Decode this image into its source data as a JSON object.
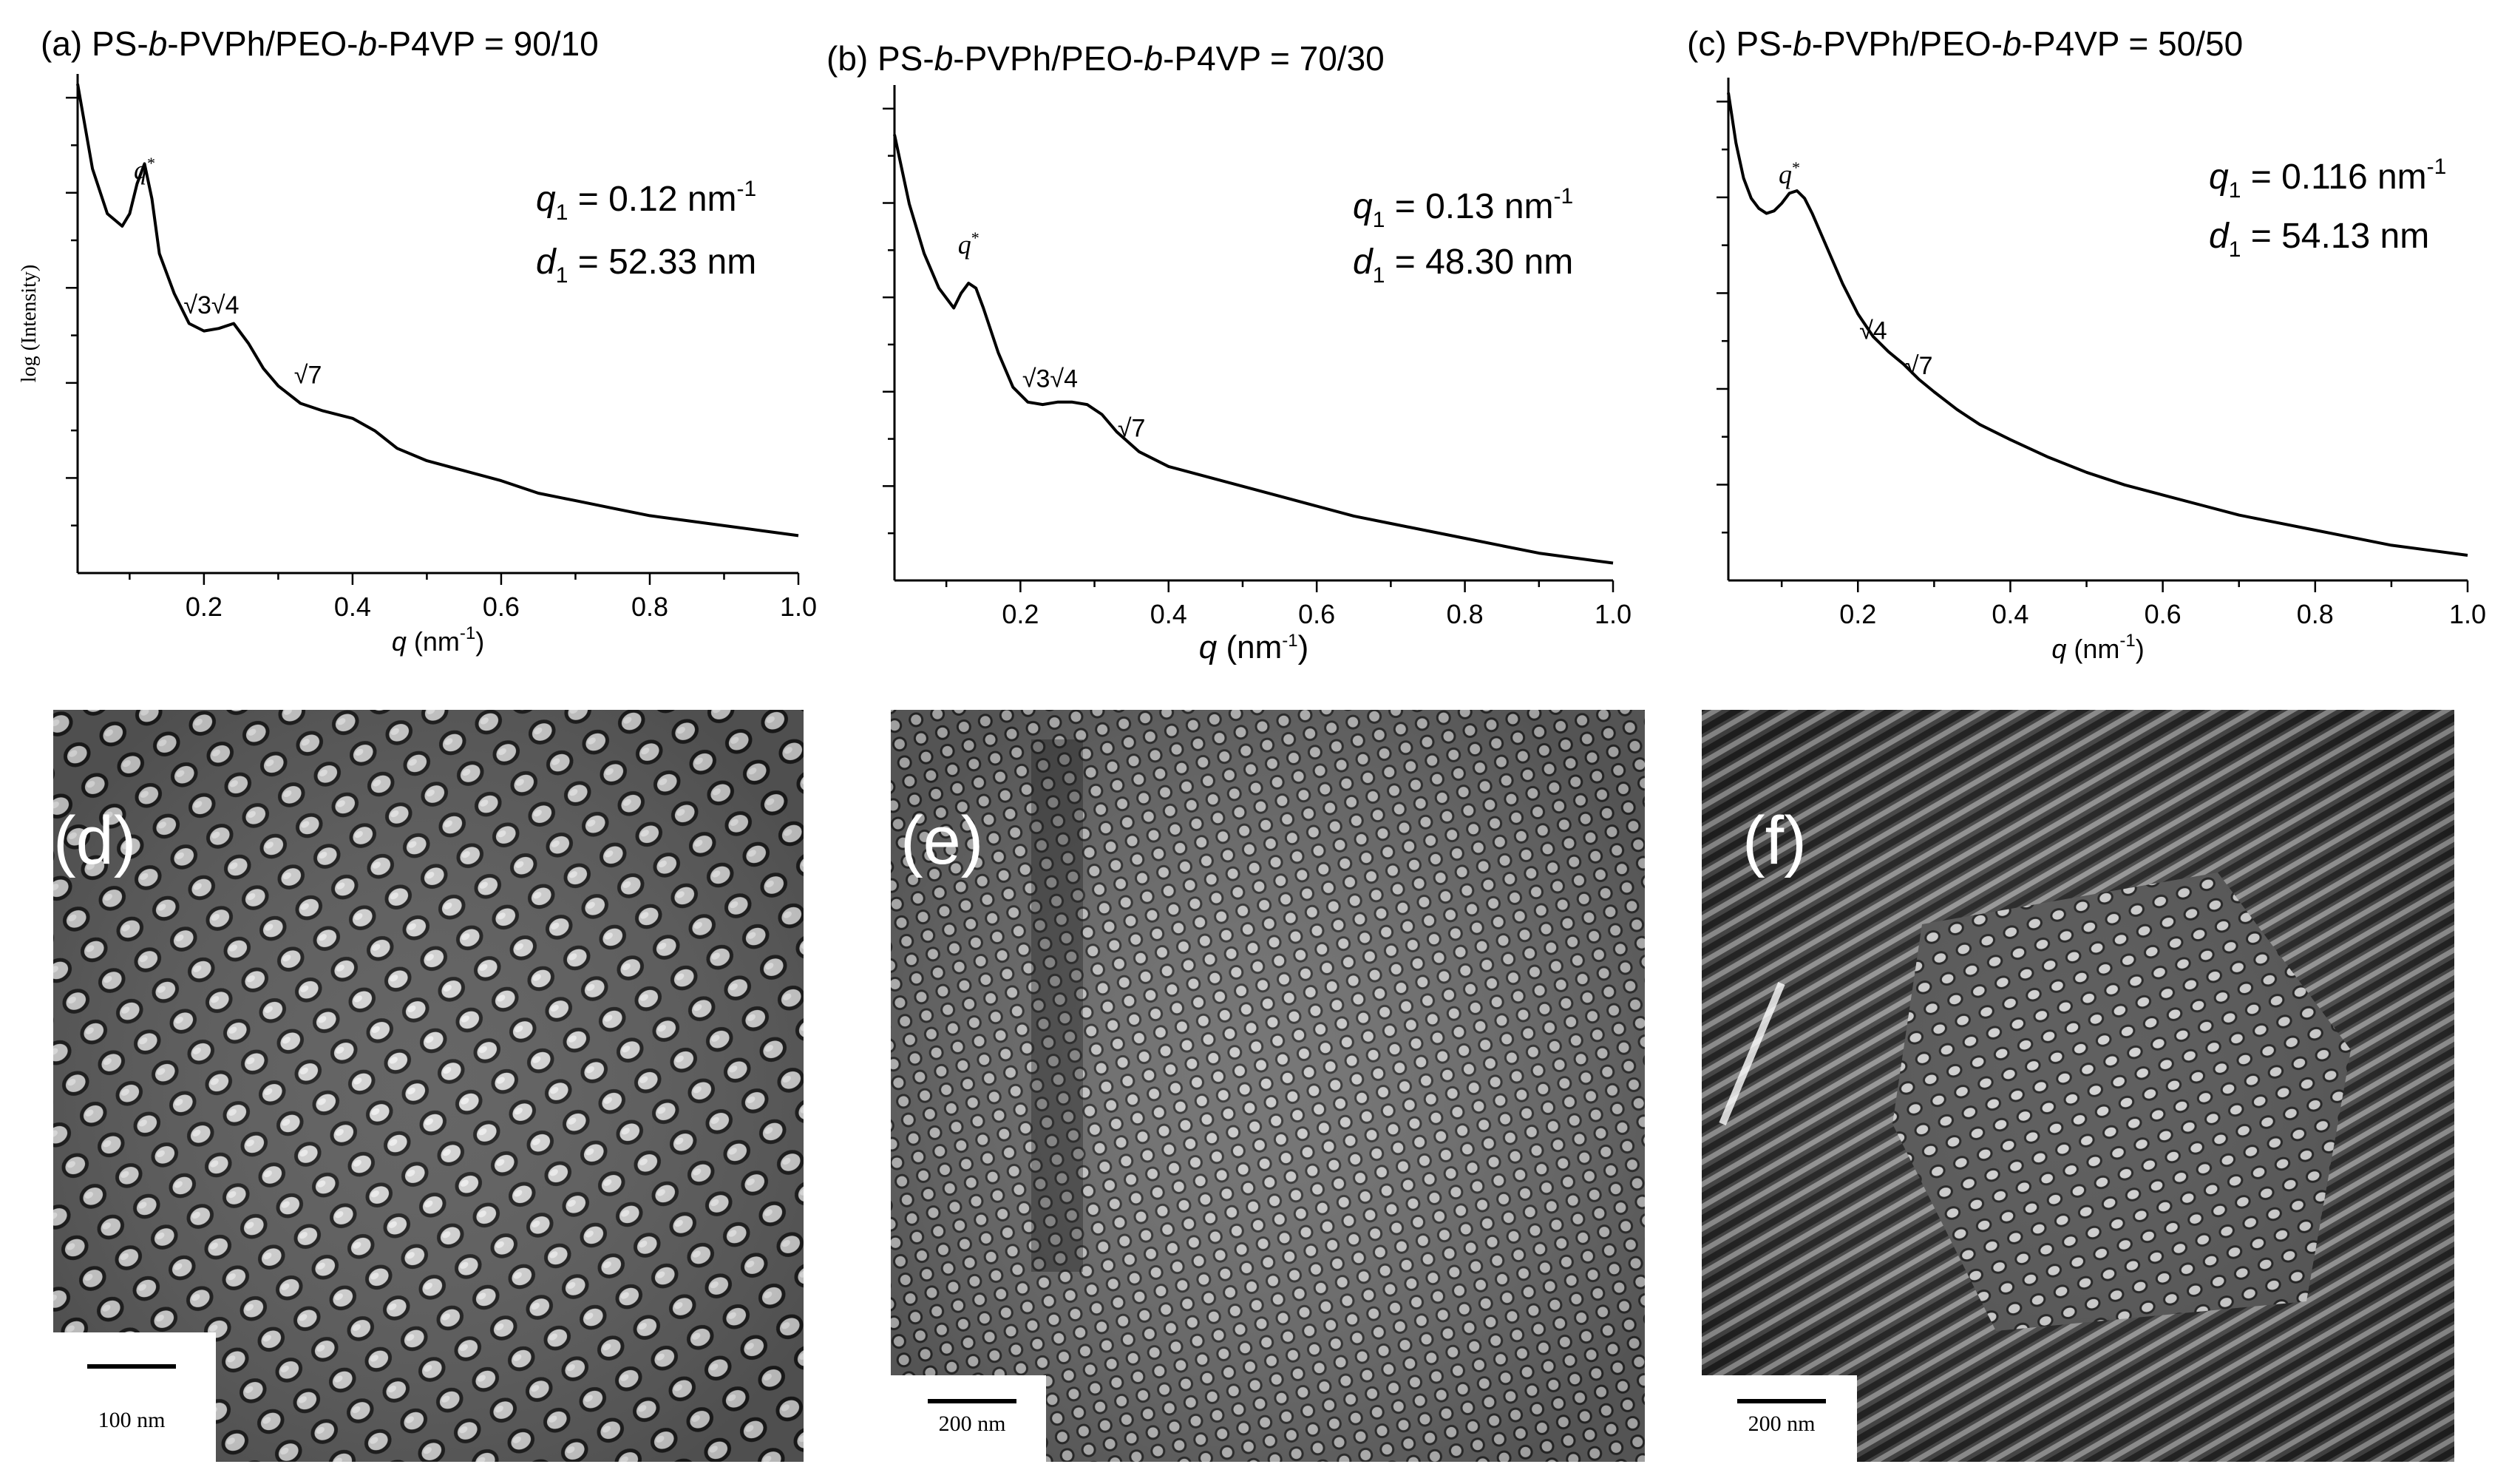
{
  "chart_data": [
    {
      "type": "line",
      "panel_label": "(a)",
      "title_parts": [
        "PS-",
        "b",
        "-PVPh/PEO-",
        "b",
        "-P4VP = 90/10"
      ],
      "ylabel": "log (Intensity)",
      "xlabel_symbol": "q",
      "xlabel_unit": " (nm",
      "xlabel_exp": "-1",
      "xlabel_close": ")",
      "xlim": [
        0.03,
        1.0
      ],
      "xticks": [
        "0.2",
        "0.4",
        "0.6",
        "0.8",
        "1.0"
      ],
      "ylim": [
        0,
        10
      ],
      "q1_text": " = 0.12 nm",
      "d1_text": " = 52.33 nm",
      "exp": "-1",
      "peak_labels": [
        {
          "text": "q",
          "sup": "*",
          "x": 0.12,
          "y": 7.9
        },
        {
          "text": "√3√4",
          "x": 0.21,
          "y": 5.2
        },
        {
          "text": "√7",
          "x": 0.34,
          "y": 3.8
        }
      ],
      "x": [
        0.03,
        0.05,
        0.07,
        0.09,
        0.1,
        0.11,
        0.12,
        0.13,
        0.14,
        0.16,
        0.18,
        0.2,
        0.22,
        0.24,
        0.26,
        0.28,
        0.3,
        0.33,
        0.36,
        0.4,
        0.43,
        0.46,
        0.5,
        0.55,
        0.6,
        0.65,
        0.7,
        0.75,
        0.8,
        0.85,
        0.9,
        0.95,
        1.0
      ],
      "y": [
        9.8,
        8.1,
        7.2,
        6.95,
        7.2,
        7.8,
        8.2,
        7.5,
        6.4,
        5.6,
        5.0,
        4.85,
        4.9,
        5.0,
        4.6,
        4.1,
        3.75,
        3.4,
        3.25,
        3.1,
        2.85,
        2.5,
        2.25,
        2.05,
        1.85,
        1.6,
        1.45,
        1.3,
        1.15,
        1.05,
        0.95,
        0.85,
        0.75
      ]
    },
    {
      "type": "line",
      "panel_label": "(b)",
      "title_parts": [
        "PS-",
        "b",
        "-PVPh/PEO-",
        "b",
        "-P4VP = 70/30"
      ],
      "ylabel": "",
      "xlabel_symbol": "q",
      "xlabel_unit": " (nm",
      "xlabel_exp": "-1",
      "xlabel_close": ")",
      "xlim": [
        0.03,
        1.0
      ],
      "xticks": [
        "0.2",
        "0.4",
        "0.6",
        "0.8",
        "1.0"
      ],
      "ylim": [
        0,
        10
      ],
      "q1_text": " = 0.13 nm",
      "d1_text": " = 48.30 nm",
      "exp": "-1",
      "peak_labels": [
        {
          "text": "q",
          "sup": "*",
          "x": 0.13,
          "y": 6.6
        },
        {
          "text": "√3√4",
          "x": 0.24,
          "y": 3.9
        },
        {
          "text": "√7",
          "x": 0.35,
          "y": 2.9
        }
      ],
      "x": [
        0.03,
        0.05,
        0.07,
        0.09,
        0.11,
        0.12,
        0.13,
        0.14,
        0.15,
        0.17,
        0.19,
        0.21,
        0.23,
        0.25,
        0.27,
        0.29,
        0.31,
        0.33,
        0.36,
        0.4,
        0.45,
        0.5,
        0.55,
        0.6,
        0.65,
        0.7,
        0.75,
        0.8,
        0.85,
        0.9,
        0.95,
        1.0
      ],
      "y": [
        9.0,
        7.6,
        6.6,
        5.9,
        5.5,
        5.8,
        6.0,
        5.9,
        5.5,
        4.6,
        3.9,
        3.6,
        3.55,
        3.6,
        3.6,
        3.55,
        3.35,
        3.0,
        2.6,
        2.3,
        2.1,
        1.9,
        1.7,
        1.5,
        1.3,
        1.15,
        1.0,
        0.85,
        0.7,
        0.55,
        0.45,
        0.35
      ]
    },
    {
      "type": "line",
      "panel_label": "(c)",
      "title_parts": [
        "PS-",
        "b",
        "-PVPh/PEO-",
        "b",
        "-P4VP = 50/50"
      ],
      "ylabel": "",
      "xlabel_symbol": "q",
      "xlabel_unit": " (nm",
      "xlabel_exp": "-1",
      "xlabel_close": ")",
      "xlim": [
        0.03,
        1.0
      ],
      "xticks": [
        "0.2",
        "0.4",
        "0.6",
        "0.8",
        "1.0"
      ],
      "ylim": [
        0,
        10
      ],
      "q1_text": " = 0.116 nm",
      "d1_text": " = 54.13 nm",
      "exp": "-1",
      "peak_labels": [
        {
          "text": "q",
          "sup": "*",
          "x": 0.11,
          "y": 7.9
        },
        {
          "text": "√4",
          "x": 0.22,
          "y": 4.8
        },
        {
          "text": "√7",
          "x": 0.28,
          "y": 4.1
        }
      ],
      "x": [
        0.03,
        0.04,
        0.05,
        0.06,
        0.07,
        0.08,
        0.09,
        0.1,
        0.11,
        0.12,
        0.13,
        0.14,
        0.16,
        0.18,
        0.2,
        0.22,
        0.24,
        0.26,
        0.28,
        0.3,
        0.33,
        0.36,
        0.4,
        0.45,
        0.5,
        0.55,
        0.6,
        0.65,
        0.7,
        0.75,
        0.8,
        0.85,
        0.9,
        0.95,
        1.0
      ],
      "y": [
        9.7,
        8.7,
        8.0,
        7.6,
        7.4,
        7.3,
        7.35,
        7.5,
        7.7,
        7.75,
        7.6,
        7.3,
        6.6,
        5.9,
        5.3,
        4.85,
        4.55,
        4.3,
        4.0,
        3.75,
        3.4,
        3.1,
        2.8,
        2.45,
        2.15,
        1.9,
        1.7,
        1.5,
        1.3,
        1.15,
        1.0,
        0.85,
        0.7,
        0.6,
        0.5
      ]
    }
  ],
  "micrographs": [
    {
      "label": "(d)",
      "scale_text": "100 nm"
    },
    {
      "label": "(e)",
      "scale_text": "200 nm"
    },
    {
      "label": "(f)",
      "scale_text": "200 nm"
    }
  ]
}
